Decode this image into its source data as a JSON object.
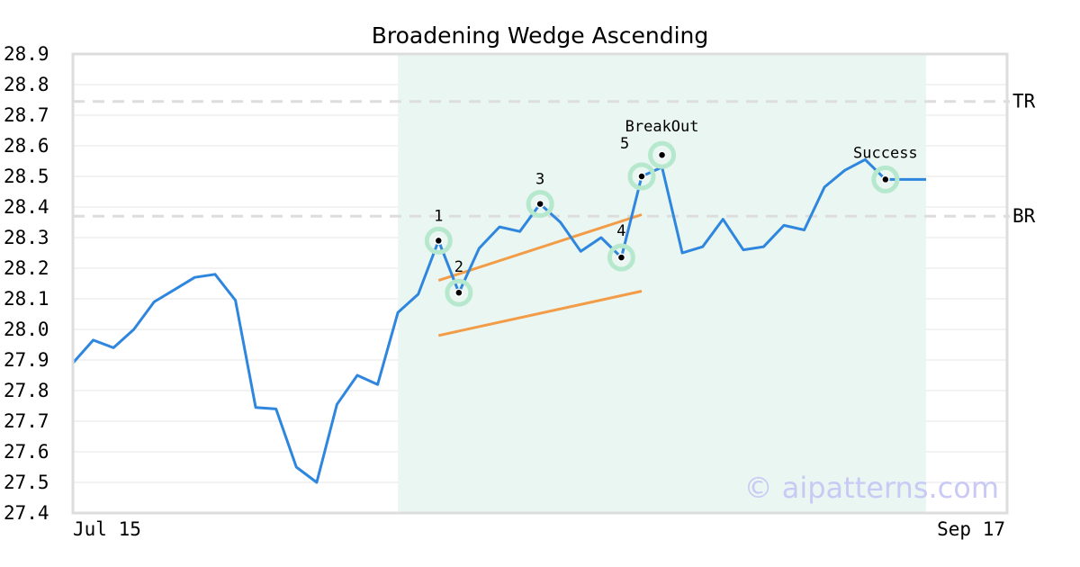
{
  "chart_data": {
    "type": "line",
    "title": "Broadening Wedge Ascending",
    "xlabel": "",
    "ylabel": "",
    "ylim": [
      27.4,
      28.9
    ],
    "yticks": [
      "28.9",
      "28.8",
      "28.7",
      "28.6",
      "28.5",
      "28.4",
      "28.3",
      "28.2",
      "28.1",
      "28.0",
      "27.9",
      "27.8",
      "27.7",
      "27.6",
      "27.5",
      "27.4"
    ],
    "x_tick_labels": [
      "Jul 15",
      "Sep 17"
    ],
    "grid": true,
    "colors": {
      "price": "#2e86de",
      "trend": "#f39c48",
      "highlight": "#eaf6f1",
      "marker_halo": "#b6e8cd",
      "level": "#dddddd"
    },
    "series": [
      {
        "values": [
          27.89,
          27.965,
          27.94,
          28.0,
          28.09,
          28.13,
          28.17,
          28.18,
          28.095,
          27.745,
          27.74,
          27.55,
          27.5,
          27.755,
          27.85,
          27.82,
          28.055,
          28.115,
          28.29,
          28.12,
          28.265,
          28.335,
          28.32,
          28.41,
          28.35,
          28.255,
          28.3,
          28.235,
          28.5,
          28.53,
          28.25,
          28.27,
          28.36,
          28.26,
          28.27,
          28.34,
          28.325,
          28.465,
          28.52,
          28.555,
          28.49,
          28.49,
          28.49
        ]
      }
    ],
    "highlight_range": {
      "from_index": 16,
      "to_index": 42
    },
    "levels": [
      {
        "label": "TR",
        "value": 28.745
      },
      {
        "label": "BR",
        "value": 28.37
      }
    ],
    "trend_lines": [
      {
        "from": {
          "index": 18,
          "value": 28.16
        },
        "to": {
          "index": 28,
          "value": 28.375
        }
      },
      {
        "from": {
          "index": 18,
          "value": 27.98
        },
        "to": {
          "index": 28,
          "value": 28.125
        }
      }
    ],
    "annotations": [
      {
        "label": "1",
        "index": 18,
        "value": 28.29
      },
      {
        "label": "2",
        "index": 19,
        "value": 28.12
      },
      {
        "label": "3",
        "index": 23,
        "value": 28.41
      },
      {
        "label": "4",
        "index": 27,
        "value": 28.235
      },
      {
        "label": "5",
        "index": 28,
        "value": 28.5
      },
      {
        "label": "BreakOut",
        "index": 29,
        "value": 28.57
      },
      {
        "label": "Success",
        "index": 40,
        "value": 28.49
      }
    ],
    "watermark": "© aipatterns.com"
  }
}
